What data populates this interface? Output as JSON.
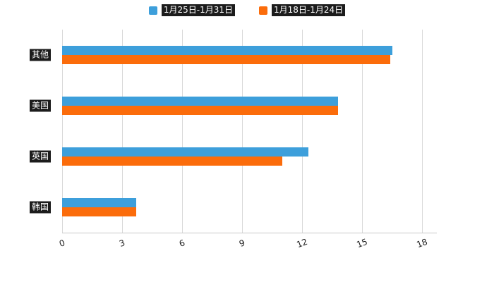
{
  "chart_data": {
    "type": "bar",
    "orientation": "horizontal",
    "title": "",
    "xlabel": "",
    "ylabel": "",
    "categories": [
      "其他",
      "美国",
      "英国",
      "韩国"
    ],
    "series": [
      {
        "name": "1月25日-1月31日",
        "color": "#3D9FDB",
        "values": [
          16.5,
          13.8,
          12.3,
          3.7
        ]
      },
      {
        "name": "1月18日-1月24日",
        "color": "#FB6C0B",
        "values": [
          16.4,
          13.8,
          11.0,
          3.7
        ]
      }
    ],
    "xlim": [
      0,
      18
    ],
    "xticks": [
      0,
      3,
      6,
      9,
      12,
      15,
      18
    ],
    "grid": "vertical-only",
    "legend_position": "top-center",
    "colors": {
      "background": "#ffffff",
      "grid_line": "#d9d9d9",
      "axis_line": "#c9c9c9",
      "tick_text": "#222222",
      "label_text": "#ffffff",
      "label_chip_background": "#1c1c1c"
    }
  }
}
